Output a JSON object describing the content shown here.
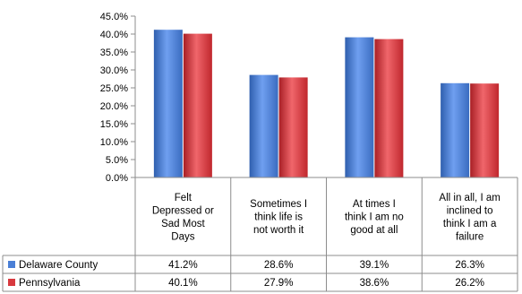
{
  "chart_data": {
    "type": "bar",
    "categories": [
      [
        "Felt",
        "Depressed or",
        "Sad Most",
        "Days"
      ],
      [
        "Sometimes  I",
        "think life is",
        "not worth it"
      ],
      [
        "At times  I",
        "think I am no",
        "good at all"
      ],
      [
        "All in all, I am",
        "inclined to",
        "think I am a",
        "failure"
      ]
    ],
    "series": [
      {
        "name": "Delaware County",
        "values": [
          41.2,
          28.6,
          39.1,
          26.3
        ],
        "labels": [
          "41.2%",
          "28.6%",
          "39.1%",
          "26.3%"
        ],
        "color": "#4a7fd6"
      },
      {
        "name": "Pennsylvania",
        "values": [
          40.1,
          27.9,
          38.6,
          26.2
        ],
        "labels": [
          "40.1%",
          "27.9%",
          "38.6%",
          "26.2%"
        ],
        "color": "#d8393f"
      }
    ],
    "ylim": [
      0,
      45
    ],
    "yticks": [
      "0.0%",
      "5.0%",
      "10.0%",
      "15.0%",
      "20.0%",
      "25.0%",
      "30.0%",
      "35.0%",
      "40.0%",
      "45.0%"
    ],
    "grid": false,
    "legend": "data-table"
  }
}
